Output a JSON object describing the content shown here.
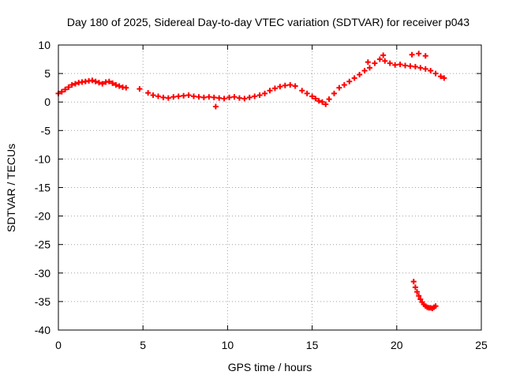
{
  "chart_data": {
    "type": "scatter",
    "title": "Day 180 of 2025, Sidereal Day-to-day VTEC variation (SDTVAR) for receiver p043",
    "xlabel": "GPS time / hours",
    "ylabel": "SDTVAR / TECUs",
    "xlim": [
      0,
      25
    ],
    "ylim": [
      -40,
      10
    ],
    "xticks": [
      0,
      5,
      10,
      15,
      20,
      25
    ],
    "yticks": [
      10,
      5,
      0,
      -5,
      -10,
      -15,
      -20,
      -25,
      -30,
      -35,
      -40
    ],
    "grid": true,
    "marker": "plus",
    "color": "#ff0000",
    "series": [
      {
        "name": "SDTVAR",
        "x": [
          0.0,
          0.2,
          0.4,
          0.6,
          0.8,
          1.0,
          1.2,
          1.4,
          1.6,
          1.8,
          2.0,
          2.2,
          2.4,
          2.6,
          2.8,
          3.0,
          3.2,
          3.4,
          3.6,
          3.8,
          4.0,
          4.8,
          5.3,
          5.6,
          5.9,
          6.2,
          6.5,
          6.8,
          7.1,
          7.4,
          7.7,
          8.0,
          8.3,
          8.6,
          8.9,
          9.2,
          9.5,
          9.8,
          10.1,
          10.4,
          10.7,
          11.0,
          11.3,
          11.6,
          11.9,
          12.2,
          12.5,
          12.8,
          13.1,
          13.4,
          13.7,
          14.0,
          14.4,
          14.7,
          15.0,
          15.2,
          15.4,
          15.6,
          15.8,
          16.0,
          16.3,
          16.6,
          16.9,
          17.2,
          17.5,
          17.8,
          18.1,
          18.4,
          18.7,
          19.0,
          19.3,
          19.6,
          19.9,
          20.2,
          20.5,
          20.8,
          21.1,
          21.4,
          21.7,
          22.0,
          22.3,
          22.6,
          22.8,
          18.3,
          19.2,
          20.9,
          21.3,
          21.7,
          9.3,
          21.0,
          21.1,
          21.2,
          21.3,
          21.4,
          21.5,
          21.6,
          21.7,
          21.8,
          21.9,
          22.0,
          22.1,
          22.2,
          22.3
        ],
        "y": [
          1.5,
          1.8,
          2.2,
          2.6,
          3.0,
          3.2,
          3.4,
          3.5,
          3.6,
          3.7,
          3.8,
          3.6,
          3.4,
          3.2,
          3.5,
          3.6,
          3.3,
          3.0,
          2.8,
          2.6,
          2.5,
          2.3,
          1.6,
          1.2,
          1.0,
          0.8,
          0.7,
          0.9,
          1.0,
          1.1,
          1.2,
          1.0,
          0.9,
          0.8,
          0.9,
          0.8,
          0.7,
          0.6,
          0.8,
          0.9,
          0.7,
          0.6,
          0.8,
          1.0,
          1.2,
          1.5,
          2.0,
          2.4,
          2.7,
          2.9,
          3.0,
          2.8,
          2.0,
          1.5,
          1.0,
          0.6,
          0.2,
          0.0,
          -0.4,
          0.5,
          1.5,
          2.5,
          3.0,
          3.6,
          4.2,
          4.8,
          5.5,
          6.0,
          6.8,
          7.5,
          7.2,
          6.8,
          6.5,
          6.6,
          6.4,
          6.3,
          6.2,
          6.0,
          5.8,
          5.5,
          5.0,
          4.5,
          4.2,
          7.0,
          8.2,
          8.3,
          8.5,
          8.1,
          -0.8,
          -31.5,
          -32.5,
          -33.3,
          -34.0,
          -34.6,
          -35.1,
          -35.5,
          -35.8,
          -36.0,
          -36.1,
          -36.1,
          -36.2,
          -36.0,
          -35.8
        ]
      }
    ]
  }
}
